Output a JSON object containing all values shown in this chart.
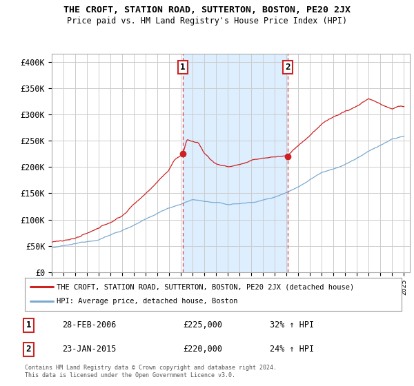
{
  "title": "THE CROFT, STATION ROAD, SUTTERTON, BOSTON, PE20 2JX",
  "subtitle": "Price paid vs. HM Land Registry's House Price Index (HPI)",
  "ylabel_ticks": [
    "£0",
    "£50K",
    "£100K",
    "£150K",
    "£200K",
    "£250K",
    "£300K",
    "£350K",
    "£400K"
  ],
  "ytick_values": [
    0,
    50000,
    100000,
    150000,
    200000,
    250000,
    300000,
    350000,
    400000
  ],
  "ylim": [
    0,
    415000
  ],
  "xlim_start": 1995.0,
  "xlim_end": 2025.5,
  "sale1_date": 2006.16,
  "sale1_price": 225000,
  "sale1_label": "1",
  "sale2_date": 2015.08,
  "sale2_price": 220000,
  "sale2_label": "2",
  "red_line_color": "#cc2222",
  "blue_line_color": "#7aaad0",
  "shade_color": "#ddeeff",
  "dashed_line_color": "#dd4444",
  "background_color": "#ffffff",
  "grid_color": "#cccccc",
  "legend1_text": "THE CROFT, STATION ROAD, SUTTERTON, BOSTON, PE20 2JX (detached house)",
  "legend2_text": "HPI: Average price, detached house, Boston",
  "footer": "Contains HM Land Registry data © Crown copyright and database right 2024.\nThis data is licensed under the Open Government Licence v3.0.",
  "sale1_date_str": "28-FEB-2006",
  "sale1_price_str": "£225,000",
  "sale1_hpi_str": "32% ↑ HPI",
  "sale2_date_str": "23-JAN-2015",
  "sale2_price_str": "£220,000",
  "sale2_hpi_str": "24% ↑ HPI"
}
